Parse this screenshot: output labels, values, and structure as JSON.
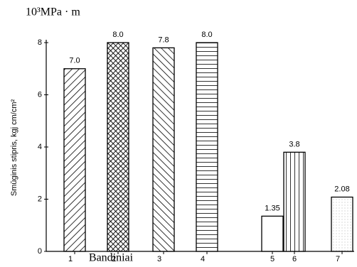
{
  "chart_data": {
    "type": "bar",
    "title": "10³MPa · m",
    "y_label": "Smūginis stipris, kgj cm/cm²",
    "x_label": "Bandiniai",
    "categories": [
      "1",
      "2",
      "3",
      "4",
      "5",
      "6",
      "7"
    ],
    "values": [
      7.0,
      8.0,
      7.8,
      8.0,
      1.35,
      3.8,
      2.08
    ],
    "value_labels": [
      "7.0",
      "8.0",
      "7.8",
      "8.0",
      "1.35",
      "3.8",
      "2.08"
    ],
    "color": "#000000",
    "ylim": [
      0,
      8
    ],
    "yticks": [
      0,
      2,
      4,
      6,
      8
    ],
    "grid": false
  }
}
